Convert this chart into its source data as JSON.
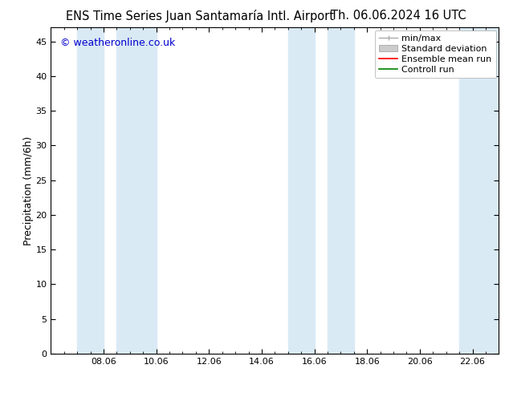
{
  "title_left": "ENS Time Series Juan Santamaría Intl. Airport",
  "title_right": "Th. 06.06.2024 16 UTC",
  "ylabel": "Precipitation (mm/6h)",
  "watermark": "© weatheronline.co.uk",
  "ylim": [
    0,
    47
  ],
  "yticks": [
    0,
    5,
    10,
    15,
    20,
    25,
    30,
    35,
    40,
    45
  ],
  "xtick_labels": [
    "08.06",
    "10.06",
    "12.06",
    "14.06",
    "16.06",
    "18.06",
    "20.06",
    "22.06"
  ],
  "xtick_positions": [
    2,
    4,
    6,
    8,
    10,
    12,
    14,
    16
  ],
  "xlim": [
    0,
    17
  ],
  "shaded_bands": [
    {
      "xmin": 1.0,
      "xmax": 2.0
    },
    {
      "xmin": 2.5,
      "xmax": 4.0
    },
    {
      "xmin": 9.0,
      "xmax": 10.0
    },
    {
      "xmin": 10.5,
      "xmax": 11.5
    },
    {
      "xmin": 15.5,
      "xmax": 17.0
    }
  ],
  "shade_color": "#daeaf5",
  "background_color": "#ffffff",
  "legend_entries": [
    {
      "label": "min/max",
      "color": "#aaaaaa",
      "type": "minmax"
    },
    {
      "label": "Standard deviation",
      "color": "#cccccc",
      "type": "patch"
    },
    {
      "label": "Ensemble mean run",
      "color": "#ff0000",
      "type": "line"
    },
    {
      "label": "Controll run",
      "color": "#008000",
      "type": "line"
    }
  ],
  "title_fontsize": 10.5,
  "watermark_color": "#0000cc",
  "watermark_fontsize": 9,
  "axis_label_fontsize": 9,
  "tick_fontsize": 8,
  "legend_fontsize": 8
}
